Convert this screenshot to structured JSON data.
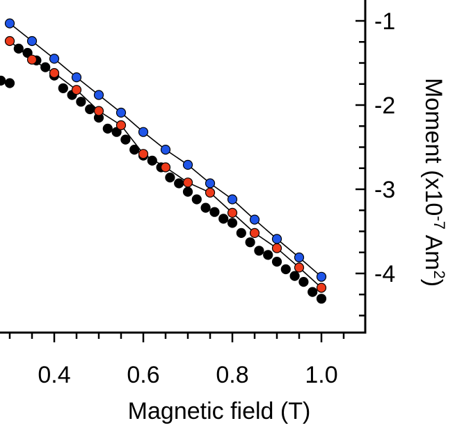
{
  "chart_data": {
    "type": "scatter",
    "title": "",
    "xlabel": "Magnetic field (T)",
    "ylabel": {
      "prefix": "Moment (x10",
      "exp1": "-7",
      "mid": " Am",
      "exp2": "2",
      "suffix": ")"
    },
    "x_range": [
      0.0,
      1.1
    ],
    "y_range": [
      -4.7,
      -0.5
    ],
    "x_ticks": [
      0.4,
      0.6,
      0.8,
      1.0
    ],
    "x_tick_labels": [
      "0.4",
      "0.6",
      "0.8",
      "1.0"
    ],
    "y_ticks": [
      -1,
      -2,
      -3,
      -4
    ],
    "y_tick_labels": [
      "-1",
      "-2",
      "-3",
      "-4"
    ],
    "y_axis_side": "right",
    "grid": false,
    "series": [
      {
        "name": "black",
        "color": "#000000",
        "connected": false,
        "points": [
          [
            0.0,
            -1.19
          ],
          [
            0.02,
            -1.22
          ],
          [
            0.04,
            -1.26
          ],
          [
            0.06,
            -1.3
          ],
          [
            0.08,
            -1.33
          ],
          [
            0.1,
            -1.37
          ],
          [
            0.12,
            -1.41
          ],
          [
            0.14,
            -1.44
          ],
          [
            0.16,
            -1.48
          ],
          [
            0.18,
            -1.52
          ],
          [
            0.2,
            -1.56
          ],
          [
            0.22,
            -1.59
          ],
          [
            0.24,
            -1.63
          ],
          [
            0.26,
            -1.67
          ],
          [
            0.28,
            -1.71
          ],
          [
            0.3,
            -1.74
          ],
          [
            0.32,
            -1.33
          ],
          [
            0.34,
            -1.38
          ],
          [
            0.36,
            -1.47
          ],
          [
            0.38,
            -1.55
          ],
          [
            0.4,
            -1.65
          ],
          [
            0.42,
            -1.8
          ],
          [
            0.44,
            -1.88
          ],
          [
            0.46,
            -1.96
          ],
          [
            0.48,
            -2.05
          ],
          [
            0.5,
            -2.15
          ],
          [
            0.52,
            -2.28
          ],
          [
            0.54,
            -2.32
          ],
          [
            0.56,
            -2.41
          ],
          [
            0.58,
            -2.53
          ],
          [
            0.6,
            -2.6
          ],
          [
            0.62,
            -2.66
          ],
          [
            0.64,
            -2.74
          ],
          [
            0.66,
            -2.86
          ],
          [
            0.68,
            -2.93
          ],
          [
            0.7,
            -3.03
          ],
          [
            0.72,
            -3.12
          ],
          [
            0.74,
            -3.22
          ],
          [
            0.76,
            -3.27
          ],
          [
            0.78,
            -3.35
          ],
          [
            0.8,
            -3.4
          ],
          [
            0.82,
            -3.52
          ],
          [
            0.84,
            -3.63
          ],
          [
            0.86,
            -3.73
          ],
          [
            0.88,
            -3.78
          ],
          [
            0.9,
            -3.86
          ],
          [
            0.92,
            -3.95
          ],
          [
            0.94,
            -4.03
          ],
          [
            0.96,
            -4.1
          ],
          [
            0.98,
            -4.22
          ],
          [
            1.0,
            -4.3
          ]
        ]
      },
      {
        "name": "red",
        "color": "#ee3a1a",
        "connected": true,
        "points": [
          [
            0.3,
            -1.24
          ],
          [
            0.35,
            -1.46
          ],
          [
            0.4,
            -1.62
          ],
          [
            0.45,
            -1.82
          ],
          [
            0.5,
            -2.07
          ],
          [
            0.55,
            -2.24
          ],
          [
            0.6,
            -2.58
          ],
          [
            0.65,
            -2.74
          ],
          [
            0.7,
            -2.92
          ],
          [
            0.75,
            -3.04
          ],
          [
            0.8,
            -3.28
          ],
          [
            0.85,
            -3.52
          ],
          [
            0.9,
            -3.7
          ],
          [
            0.95,
            -3.93
          ],
          [
            1.0,
            -4.17
          ]
        ]
      },
      {
        "name": "blue",
        "color": "#1f55e8",
        "connected": true,
        "points": [
          [
            0.3,
            -1.03
          ],
          [
            0.35,
            -1.24
          ],
          [
            0.4,
            -1.45
          ],
          [
            0.45,
            -1.67
          ],
          [
            0.5,
            -1.88
          ],
          [
            0.55,
            -2.09
          ],
          [
            0.6,
            -2.32
          ],
          [
            0.65,
            -2.53
          ],
          [
            0.7,
            -2.71
          ],
          [
            0.75,
            -2.93
          ],
          [
            0.8,
            -3.12
          ],
          [
            0.85,
            -3.36
          ],
          [
            0.9,
            -3.59
          ],
          [
            0.95,
            -3.81
          ],
          [
            1.0,
            -4.04
          ]
        ]
      }
    ]
  }
}
